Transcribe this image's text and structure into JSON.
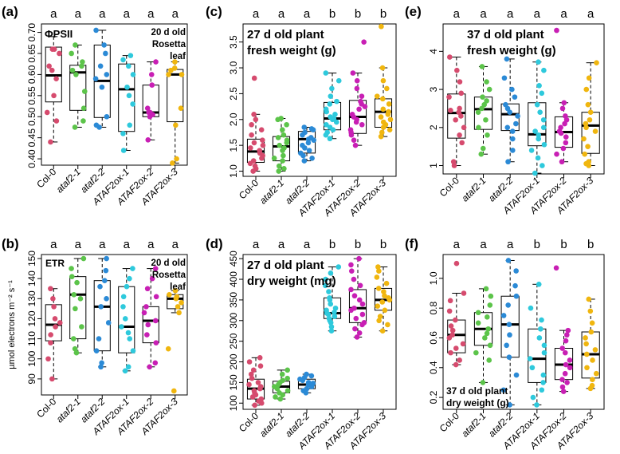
{
  "colors": {
    "Col-0": "#d64b6e",
    "ataf2-1": "#5cc44a",
    "ataf2-2": "#2b8ad6",
    "ATAF2ox-1": "#2ec9dc",
    "ATAF2ox-2": "#c81fb4",
    "ATAF2ox-3": "#f0b60f"
  },
  "genotypes": [
    "Col-0",
    "ataf2-1",
    "ataf2-2",
    "ATAF2ox-1",
    "ATAF2ox-2",
    "ATAF2ox-3"
  ],
  "chart_data": [
    {
      "id": "a",
      "type": "box-dot",
      "panel_label": "(a)",
      "ylabel": "ΦPSII",
      "ylabel_inside": true,
      "annotation": [
        "20 d old",
        "Rosetta",
        "leaf"
      ],
      "ylim": [
        0.385,
        0.72
      ],
      "yticks": [
        0.4,
        0.45,
        0.5,
        0.55,
        0.6,
        0.65,
        0.7
      ],
      "ytick_labels": [
        "0.40",
        "0.45",
        "0.50",
        "0.55",
        "0.60",
        "0.65",
        "0.70"
      ],
      "significance": [
        "a",
        "a",
        "a",
        "a",
        "a",
        "a"
      ],
      "series": [
        {
          "name": "Col-0",
          "box": [
            0.44,
            0.535,
            0.598,
            0.665,
            0.69
          ],
          "points": [
            0.44,
            0.49,
            0.51,
            0.55,
            0.59,
            0.61,
            0.62,
            0.65,
            0.66,
            0.66
          ]
        },
        {
          "name": "ataf2-1",
          "box": [
            0.475,
            0.515,
            0.605,
            0.622,
            0.67
          ],
          "points": [
            0.475,
            0.49,
            0.52,
            0.56,
            0.6,
            0.61,
            0.62,
            0.63,
            0.65,
            0.67
          ]
        },
        {
          "name": "ataf2-2",
          "box": [
            0.475,
            0.498,
            0.585,
            0.67,
            0.705
          ],
          "points": [
            0.475,
            0.48,
            0.5,
            0.57,
            0.59,
            0.6,
            0.62,
            0.65,
            0.67,
            0.705
          ]
        },
        {
          "name": "ATAF2ox-1",
          "box": [
            0.42,
            0.465,
            0.565,
            0.625,
            0.645
          ],
          "points": [
            0.42,
            0.46,
            0.48,
            0.53,
            0.55,
            0.57,
            0.6,
            0.62,
            0.635,
            0.645
          ]
        },
        {
          "name": "ATAF2ox-2",
          "box": [
            0.445,
            0.5,
            0.51,
            0.575,
            0.63
          ],
          "points": [
            0.445,
            0.5,
            0.505,
            0.51,
            0.51,
            0.52,
            0.575,
            0.6,
            0.63
          ]
        },
        {
          "name": "ATAF2ox-3",
          "box": [
            0.39,
            0.488,
            0.6,
            0.612,
            0.63
          ],
          "points": [
            0.39,
            0.4,
            0.48,
            0.52,
            0.6,
            0.6,
            0.61,
            0.615,
            0.63
          ]
        }
      ]
    },
    {
      "id": "c",
      "type": "box-dot",
      "panel_label": "(c)",
      "annotation": [
        "27 d old plant",
        "fresh weight (g)"
      ],
      "ylim": [
        0.9,
        3.85
      ],
      "yticks": [
        1.0,
        1.5,
        2.0,
        2.5,
        3.0,
        3.5
      ],
      "ytick_labels": [
        "1.0",
        "1.5",
        "2.0",
        "2.5",
        "3.0",
        "3.5"
      ],
      "significance": [
        "a",
        "a",
        "a",
        "b",
        "b",
        "b"
      ],
      "series": [
        {
          "name": "Col-0",
          "box": [
            1.0,
            1.17,
            1.38,
            1.62,
            2.1
          ],
          "points": [
            1.0,
            1.05,
            1.1,
            1.15,
            1.2,
            1.25,
            1.3,
            1.35,
            1.4,
            1.45,
            1.5,
            1.55,
            1.6,
            1.7,
            1.8,
            1.9,
            2.0,
            2.1,
            2.8
          ]
        },
        {
          "name": "ataf2-1",
          "box": [
            1.0,
            1.2,
            1.48,
            1.67,
            2.02
          ],
          "points": [
            1.0,
            1.05,
            1.1,
            1.2,
            1.25,
            1.3,
            1.4,
            1.45,
            1.5,
            1.55,
            1.6,
            1.65,
            1.7,
            1.8,
            1.9,
            2.0,
            2.02
          ]
        },
        {
          "name": "ataf2-2",
          "box": [
            1.2,
            1.35,
            1.62,
            1.77,
            1.85
          ],
          "points": [
            1.2,
            1.25,
            1.3,
            1.35,
            1.4,
            1.45,
            1.5,
            1.55,
            1.6,
            1.62,
            1.65,
            1.7,
            1.75,
            1.8,
            1.82,
            1.85
          ]
        },
        {
          "name": "ATAF2ox-1",
          "box": [
            1.63,
            1.8,
            2.02,
            2.33,
            2.9
          ],
          "points": [
            1.63,
            1.7,
            1.75,
            1.8,
            1.85,
            1.9,
            1.95,
            2.0,
            2.02,
            2.05,
            2.1,
            2.15,
            2.2,
            2.3,
            2.35,
            2.45,
            2.6,
            2.75,
            2.9
          ]
        },
        {
          "name": "ATAF2ox-2",
          "box": [
            1.5,
            1.73,
            2.05,
            2.37,
            2.9
          ],
          "points": [
            1.5,
            1.6,
            1.7,
            1.75,
            1.8,
            1.9,
            1.95,
            2.0,
            2.05,
            2.1,
            2.2,
            2.25,
            2.3,
            2.35,
            2.45,
            2.6,
            2.75,
            2.9,
            3.5
          ]
        },
        {
          "name": "ATAF2ox-3",
          "box": [
            1.67,
            1.85,
            2.15,
            2.4,
            3.0
          ],
          "points": [
            1.67,
            1.75,
            1.8,
            1.85,
            1.9,
            1.95,
            2.0,
            2.05,
            2.1,
            2.15,
            2.2,
            2.3,
            2.4,
            2.45,
            2.6,
            2.75,
            3.0,
            3.8
          ]
        }
      ]
    },
    {
      "id": "e",
      "type": "box-dot",
      "panel_label": "(e)",
      "annotation": [
        "37 d old plant",
        "fresh weight (g)"
      ],
      "ylim": [
        0.78,
        4.72
      ],
      "yticks": [
        1,
        2,
        3,
        4
      ],
      "ytick_labels": [
        "1",
        "2",
        "3",
        "4"
      ],
      "significance": [
        "a",
        "a",
        "a",
        "a",
        "a",
        "a"
      ],
      "series": [
        {
          "name": "Col-0",
          "box": [
            1.0,
            1.72,
            2.38,
            2.88,
            3.85
          ],
          "points": [
            1.0,
            1.1,
            1.6,
            1.8,
            2.0,
            2.2,
            2.3,
            2.4,
            2.45,
            2.5,
            2.8,
            2.9,
            3.2,
            3.5,
            3.85
          ]
        },
        {
          "name": "ataf2-1",
          "box": [
            1.3,
            1.95,
            2.48,
            2.8,
            3.6
          ],
          "points": [
            1.3,
            1.45,
            1.8,
            2.0,
            2.2,
            2.4,
            2.5,
            2.6,
            2.7,
            2.8,
            3.0,
            3.2,
            3.6
          ]
        },
        {
          "name": "ataf2-2",
          "box": [
            1.1,
            1.92,
            2.35,
            2.62,
            3.8
          ],
          "points": [
            1.1,
            1.4,
            1.7,
            1.9,
            2.0,
            2.1,
            2.3,
            2.4,
            2.5,
            2.6,
            2.8,
            3.0,
            3.3,
            3.8
          ]
        },
        {
          "name": "ATAF2ox-1",
          "box": [
            0.8,
            1.52,
            1.82,
            2.65,
            3.72
          ],
          "points": [
            0.8,
            1.0,
            1.2,
            1.4,
            1.55,
            1.7,
            1.8,
            1.9,
            2.0,
            2.2,
            2.4,
            2.6,
            2.9,
            3.1,
            3.5,
            3.72
          ]
        },
        {
          "name": "ATAF2ox-2",
          "box": [
            1.1,
            1.48,
            1.88,
            2.28,
            2.65
          ],
          "points": [
            1.1,
            1.3,
            1.45,
            1.6,
            1.75,
            1.85,
            1.9,
            2.0,
            2.1,
            2.2,
            2.3,
            2.5,
            2.65,
            4.55
          ]
        },
        {
          "name": "ATAF2ox-3",
          "box": [
            1.0,
            1.32,
            2.05,
            2.4,
            3.7
          ],
          "points": [
            1.0,
            1.05,
            1.1,
            1.3,
            1.5,
            1.7,
            1.9,
            2.0,
            2.1,
            2.2,
            2.4,
            2.6,
            3.0,
            3.3,
            3.7
          ]
        }
      ]
    },
    {
      "id": "b",
      "type": "box-dot",
      "panel_label": "(b)",
      "ylabel": "µmol electrons m⁻² s⁻¹",
      "annotation": [
        "20 d old",
        "Rosetta",
        "leaf"
      ],
      "annotation_left": "ETR",
      "ylim": [
        82,
        152
      ],
      "yticks": [
        90,
        100,
        110,
        120,
        130,
        140,
        150
      ],
      "ytick_labels": [
        "90",
        "100",
        "110",
        "120",
        "130",
        "140",
        "150"
      ],
      "significance": [
        "a",
        "a",
        "a",
        "a",
        "a",
        "a"
      ],
      "series": [
        {
          "name": "Col-0",
          "box": [
            90,
            109,
            117,
            127,
            135
          ],
          "points": [
            90,
            100,
            108,
            112,
            116,
            118,
            120,
            126,
            130,
            135
          ]
        },
        {
          "name": "ataf2-1",
          "box": [
            103,
            110,
            132,
            141,
            150
          ],
          "points": [
            103,
            105,
            110,
            116,
            125,
            130,
            132,
            138,
            141,
            145,
            150
          ]
        },
        {
          "name": "ataf2-2",
          "box": [
            96,
            104,
            126,
            139,
            150
          ],
          "points": [
            96,
            98,
            104,
            110,
            118,
            126,
            130,
            136,
            139,
            144,
            150
          ]
        },
        {
          "name": "ATAF2ox-1",
          "box": [
            94,
            103,
            116,
            136,
            145
          ],
          "points": [
            94,
            96,
            104,
            110,
            113,
            116,
            120,
            126,
            131,
            136,
            140,
            145
          ]
        },
        {
          "name": "ATAF2ox-2",
          "box": [
            96,
            108,
            119,
            126,
            145
          ],
          "points": [
            96,
            98,
            108,
            112,
            117,
            119,
            123,
            126,
            131,
            135,
            140,
            145
          ]
        },
        {
          "name": "ATAF2ox-3",
          "box": [
            123,
            125,
            130,
            132,
            134
          ],
          "points": [
            84,
            105,
            123,
            126,
            128,
            130,
            131,
            132,
            134
          ]
        }
      ]
    },
    {
      "id": "d",
      "type": "box-dot",
      "panel_label": "(d)",
      "annotation": [
        "27 d old plant",
        "dry weight (mg)"
      ],
      "ylim": [
        85,
        460
      ],
      "yticks": [
        100,
        150,
        200,
        250,
        300,
        350,
        400,
        450
      ],
      "ytick_labels": [
        "100",
        "150",
        "200",
        "250",
        "300",
        "350",
        "400",
        "450"
      ],
      "significance": [
        "a",
        "a",
        "a",
        "b",
        "b",
        "b"
      ],
      "series": [
        {
          "name": "Col-0",
          "box": [
            95,
            110,
            135,
            158,
            210
          ],
          "points": [
            95,
            100,
            105,
            110,
            115,
            120,
            125,
            130,
            135,
            140,
            145,
            150,
            160,
            170,
            180,
            190,
            200,
            210
          ]
        },
        {
          "name": "ataf2-1",
          "box": [
            110,
            125,
            140,
            153,
            180
          ],
          "points": [
            110,
            115,
            120,
            125,
            130,
            135,
            140,
            145,
            150,
            155,
            160,
            170,
            180
          ]
        },
        {
          "name": "ataf2-2",
          "box": [
            125,
            135,
            145,
            158,
            170
          ],
          "points": [
            125,
            130,
            135,
            140,
            145,
            148,
            150,
            155,
            158,
            162,
            166,
            170
          ]
        },
        {
          "name": "ATAF2ox-1",
          "box": [
            275,
            305,
            318,
            355,
            430
          ],
          "points": [
            275,
            285,
            295,
            300,
            305,
            310,
            315,
            318,
            320,
            325,
            330,
            340,
            350,
            355,
            370,
            385,
            400,
            415,
            430
          ]
        },
        {
          "name": "ATAF2ox-2",
          "box": [
            260,
            295,
            330,
            375,
            450
          ],
          "points": [
            260,
            270,
            280,
            290,
            295,
            305,
            315,
            325,
            330,
            340,
            350,
            360,
            375,
            385,
            400,
            420,
            435,
            450
          ]
        },
        {
          "name": "ATAF2ox-3",
          "box": [
            275,
            325,
            350,
            378,
            430
          ],
          "points": [
            275,
            290,
            300,
            310,
            325,
            335,
            345,
            350,
            355,
            360,
            370,
            378,
            390,
            405,
            420,
            430
          ]
        }
      ]
    },
    {
      "id": "f",
      "type": "box-dot",
      "panel_label": "(f)",
      "annotation": [
        "37 d old plant",
        "dry weight (g)"
      ],
      "annotation_position": "bottom-left",
      "ylim": [
        0.12,
        1.16
      ],
      "yticks": [
        0.2,
        0.4,
        0.6,
        0.8,
        1.0
      ],
      "ytick_labels": [
        "0.2",
        "0.4",
        "0.6",
        "0.8",
        "1.0"
      ],
      "significance": [
        "a",
        "a",
        "a",
        "b",
        "b",
        "b"
      ],
      "series": [
        {
          "name": "Col-0",
          "box": [
            0.42,
            0.5,
            0.62,
            0.72,
            0.9
          ],
          "points": [
            0.42,
            0.45,
            0.5,
            0.53,
            0.56,
            0.6,
            0.62,
            0.65,
            0.68,
            0.72,
            0.78,
            0.85,
            0.9,
            1.1
          ]
        },
        {
          "name": "ataf2-1",
          "box": [
            0.3,
            0.55,
            0.66,
            0.77,
            0.93
          ],
          "points": [
            0.3,
            0.45,
            0.5,
            0.55,
            0.6,
            0.63,
            0.66,
            0.7,
            0.74,
            0.77,
            0.82,
            0.88,
            0.93
          ]
        },
        {
          "name": "ataf2-2",
          "box": [
            0.15,
            0.47,
            0.69,
            0.88,
            1.12
          ],
          "points": [
            0.15,
            0.25,
            0.35,
            0.47,
            0.55,
            0.62,
            0.69,
            0.75,
            0.82,
            0.88,
            0.95,
            1.05,
            1.12
          ]
        },
        {
          "name": "ATAF2ox-1",
          "box": [
            0.15,
            0.3,
            0.46,
            0.66,
            0.96
          ],
          "points": [
            0.15,
            0.2,
            0.25,
            0.3,
            0.35,
            0.4,
            0.46,
            0.5,
            0.55,
            0.6,
            0.66,
            0.72,
            0.8,
            0.96
          ]
        },
        {
          "name": "ATAF2ox-2",
          "box": [
            0.24,
            0.32,
            0.42,
            0.53,
            0.65
          ],
          "points": [
            0.24,
            0.27,
            0.3,
            0.32,
            0.36,
            0.4,
            0.42,
            0.45,
            0.5,
            0.53,
            0.58,
            0.62,
            0.65,
            1.07
          ]
        },
        {
          "name": "ATAF2ox-3",
          "box": [
            0.26,
            0.33,
            0.49,
            0.64,
            0.86
          ],
          "points": [
            0.26,
            0.28,
            0.32,
            0.36,
            0.4,
            0.45,
            0.49,
            0.52,
            0.56,
            0.6,
            0.64,
            0.7,
            0.78,
            0.86
          ]
        }
      ]
    }
  ]
}
